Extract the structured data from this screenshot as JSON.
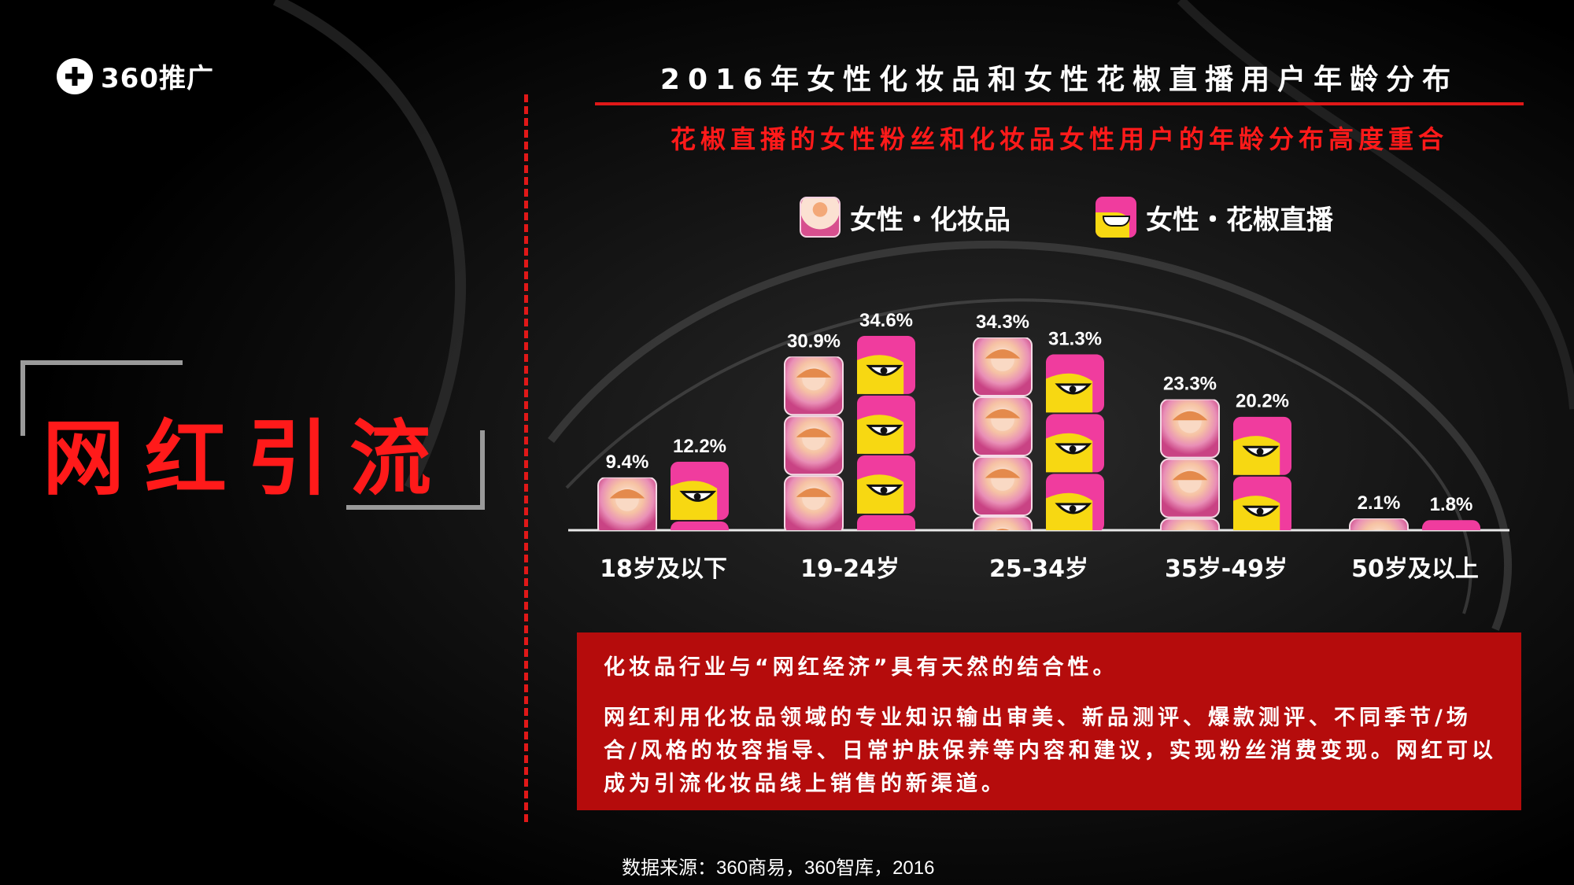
{
  "brand": {
    "logo_text": "360推广"
  },
  "section": {
    "title": "网红引流"
  },
  "colors": {
    "accent_red": "#e01818",
    "title_red": "#ff1a1a",
    "box_red": "#b50c0c",
    "cosmetics_pink": "#d74f8e",
    "huajiao_pink": "#f03c9e",
    "huajiao_yellow": "#f7d812"
  },
  "legend": {
    "cosmetics_icon": "cosmetics-girl-icon",
    "huajiao_icon": "huajiao-app-icon"
  },
  "chart_data": {
    "type": "bar",
    "title": "2016年女性化妆品和女性花椒直播用户年龄分布",
    "subtitle": "花椒直播的女性粉丝和化妆品女性用户的年龄分布高度重合",
    "categories": [
      "18岁及以下",
      "19-24岁",
      "25-34岁",
      "35岁-49岁",
      "50岁及以上"
    ],
    "series": [
      {
        "name": "女性・化妆品",
        "values": [
          9.4,
          30.9,
          34.3,
          23.3,
          2.1
        ],
        "labels": [
          "9.4%",
          "30.9%",
          "34.3%",
          "23.3%",
          "2.1%"
        ]
      },
      {
        "name": "女性・花椒直播",
        "values": [
          12.2,
          34.6,
          31.3,
          20.2,
          1.8
        ],
        "labels": [
          "12.2%",
          "34.6%",
          "31.3%",
          "20.2%",
          "1.8%"
        ]
      }
    ],
    "unit": "%",
    "ylim": [
      0,
      35
    ],
    "legend_position": "top",
    "grid": false
  },
  "note": {
    "line1": "化妆品行业与“网红经济”具有天然的结合性。",
    "line2": "网红利用化妆品领域的专业知识输出审美、新品测评、爆款测评、不同季节/场合/风格的妆容指导、日常护肤保养等内容和建议，实现粉丝消费变现。网红可以成为引流化妆品线上销售的新渠道。"
  },
  "source": "数据来源：360商易，360智库，2016"
}
